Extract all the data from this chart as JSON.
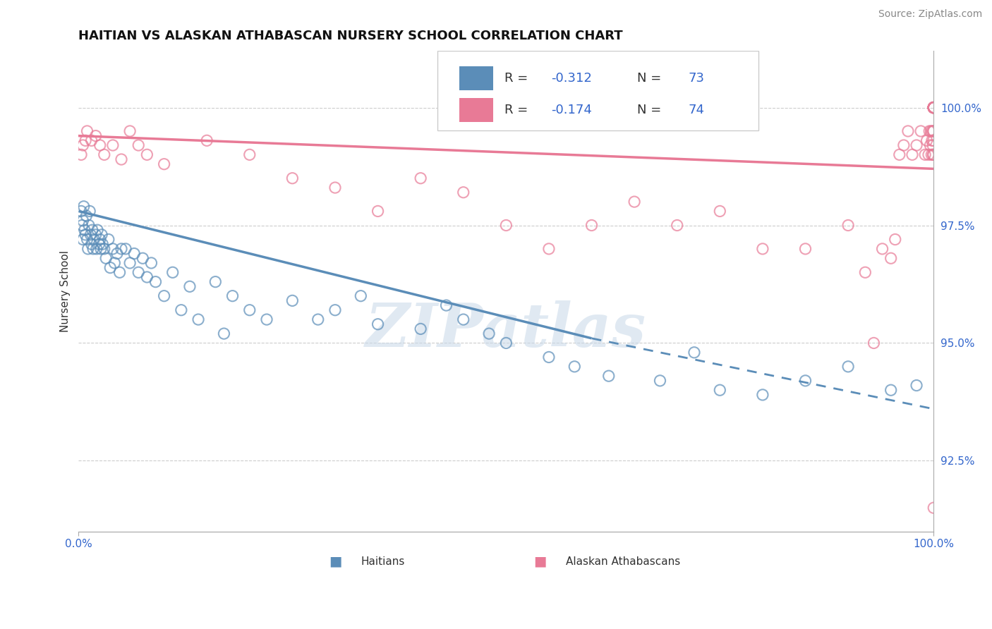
{
  "title": "HAITIAN VS ALASKAN ATHABASCAN NURSERY SCHOOL CORRELATION CHART",
  "source": "Source: ZipAtlas.com",
  "xlabel_center": "Haitians",
  "ylabel": "Nursery School",
  "ylabel_right_labels": [
    100.0,
    97.5,
    95.0,
    92.5
  ],
  "xmin": 0.0,
  "xmax": 100.0,
  "ymin": 91.0,
  "ymax": 101.2,
  "blue_color": "#5B8DB8",
  "pink_color": "#E87A96",
  "blue_R": -0.312,
  "blue_N": 73,
  "pink_R": -0.174,
  "pink_N": 74,
  "watermark": "ZIPatlas",
  "blue_line_start_x": 0.0,
  "blue_line_start_y": 97.8,
  "blue_line_solid_end_x": 60.0,
  "blue_line_solid_end_y": 95.1,
  "blue_line_dash_end_x": 100.0,
  "blue_line_dash_end_y": 93.6,
  "pink_line_start_x": 0.0,
  "pink_line_start_y": 99.4,
  "pink_line_end_x": 100.0,
  "pink_line_end_y": 98.7,
  "blue_scatter_x": [
    0.3,
    0.4,
    0.5,
    0.5,
    0.6,
    0.7,
    0.8,
    0.9,
    1.0,
    1.1,
    1.2,
    1.3,
    1.4,
    1.5,
    1.6,
    1.7,
    1.8,
    2.0,
    2.1,
    2.2,
    2.4,
    2.5,
    2.6,
    2.7,
    2.8,
    3.0,
    3.2,
    3.5,
    3.7,
    4.0,
    4.2,
    4.5,
    4.8,
    5.0,
    5.5,
    6.0,
    6.5,
    7.0,
    7.5,
    8.0,
    8.5,
    9.0,
    10.0,
    11.0,
    12.0,
    13.0,
    14.0,
    16.0,
    17.0,
    18.0,
    20.0,
    22.0,
    25.0,
    28.0,
    30.0,
    33.0,
    35.0,
    40.0,
    43.0,
    45.0,
    48.0,
    50.0,
    55.0,
    58.0,
    62.0,
    68.0,
    72.0,
    75.0,
    80.0,
    85.0,
    90.0,
    95.0,
    98.0
  ],
  "blue_scatter_y": [
    97.8,
    97.5,
    97.6,
    97.2,
    97.9,
    97.4,
    97.3,
    97.7,
    97.2,
    97.0,
    97.5,
    97.8,
    97.3,
    97.1,
    97.4,
    97.0,
    97.2,
    97.3,
    97.0,
    97.4,
    97.1,
    97.2,
    97.0,
    97.3,
    97.1,
    97.0,
    96.8,
    97.2,
    96.6,
    97.0,
    96.7,
    96.9,
    96.5,
    97.0,
    97.0,
    96.7,
    96.9,
    96.5,
    96.8,
    96.4,
    96.7,
    96.3,
    96.0,
    96.5,
    95.7,
    96.2,
    95.5,
    96.3,
    95.2,
    96.0,
    95.7,
    95.5,
    95.9,
    95.5,
    95.7,
    96.0,
    95.4,
    95.3,
    95.8,
    95.5,
    95.2,
    95.0,
    94.7,
    94.5,
    94.3,
    94.2,
    94.8,
    94.0,
    93.9,
    94.2,
    94.5,
    94.0,
    94.1
  ],
  "pink_scatter_x": [
    0.3,
    0.5,
    0.8,
    1.0,
    1.5,
    2.0,
    2.5,
    3.0,
    4.0,
    5.0,
    6.0,
    7.0,
    8.0,
    10.0,
    15.0,
    20.0,
    25.0,
    30.0,
    35.0,
    40.0,
    45.0,
    50.0,
    55.0,
    60.0,
    65.0,
    70.0,
    75.0,
    80.0,
    85.0,
    90.0,
    92.0,
    93.0,
    94.0,
    95.0,
    95.5,
    96.0,
    96.5,
    97.0,
    97.5,
    98.0,
    98.5,
    99.0,
    99.2,
    99.4,
    99.5,
    99.6,
    99.7,
    99.75,
    99.8,
    99.85,
    99.9,
    99.92,
    99.95,
    99.97,
    99.98,
    99.99,
    100.0,
    100.0,
    100.0,
    100.0,
    100.0,
    100.0,
    100.0,
    100.0,
    100.0,
    100.0,
    100.0,
    100.0,
    100.0,
    100.0,
    100.0,
    100.0,
    100.0,
    100.0
  ],
  "pink_scatter_y": [
    99.0,
    99.2,
    99.3,
    99.5,
    99.3,
    99.4,
    99.2,
    99.0,
    99.2,
    98.9,
    99.5,
    99.2,
    99.0,
    98.8,
    99.3,
    99.0,
    98.5,
    98.3,
    97.8,
    98.5,
    98.2,
    97.5,
    97.0,
    97.5,
    98.0,
    97.5,
    97.8,
    97.0,
    97.0,
    97.5,
    96.5,
    95.0,
    97.0,
    96.8,
    97.2,
    99.0,
    99.2,
    99.5,
    99.0,
    99.2,
    99.5,
    99.0,
    99.3,
    99.0,
    99.5,
    99.2,
    99.5,
    99.0,
    99.3,
    99.5,
    99.2,
    99.0,
    99.5,
    99.3,
    99.0,
    99.5,
    100.0,
    100.0,
    100.0,
    100.0,
    100.0,
    100.0,
    100.0,
    100.0,
    100.0,
    100.0,
    100.0,
    100.0,
    100.0,
    100.0,
    100.0,
    100.0,
    100.0,
    91.5
  ]
}
